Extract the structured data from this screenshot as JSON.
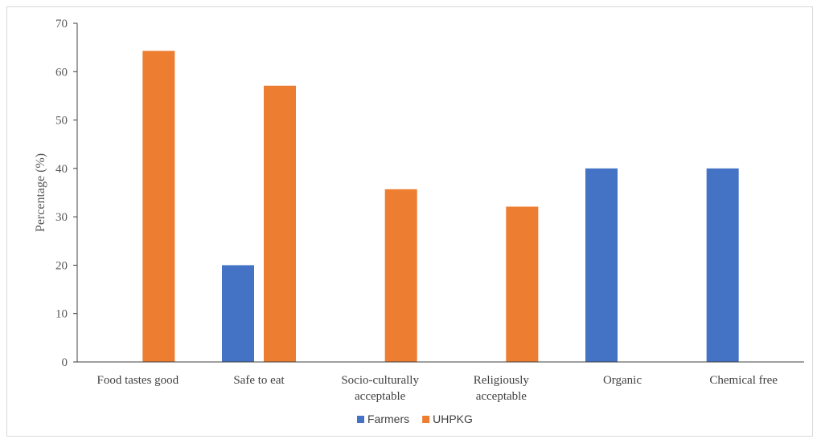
{
  "chart_data": {
    "type": "bar",
    "title": "",
    "xlabel": "",
    "ylabel": "Percentage (%)",
    "ylim": [
      0,
      70
    ],
    "yticks": [
      0,
      10,
      20,
      30,
      40,
      50,
      60,
      70
    ],
    "categories": [
      [
        "Food tastes good"
      ],
      [
        "Safe to eat"
      ],
      [
        "Socio-culturally",
        "acceptable"
      ],
      [
        "Religiously",
        "acceptable"
      ],
      [
        "Organic"
      ],
      [
        "Chemical free"
      ]
    ],
    "series": [
      {
        "name": "Farmers",
        "color": "#4472C4",
        "values": [
          0,
          20,
          0,
          0,
          40,
          40
        ]
      },
      {
        "name": "UHPKG",
        "color": "#ED7D31",
        "values": [
          64.3,
          57.1,
          35.7,
          32.1,
          0,
          0
        ]
      }
    ],
    "grid": false,
    "legend": "bottom"
  }
}
